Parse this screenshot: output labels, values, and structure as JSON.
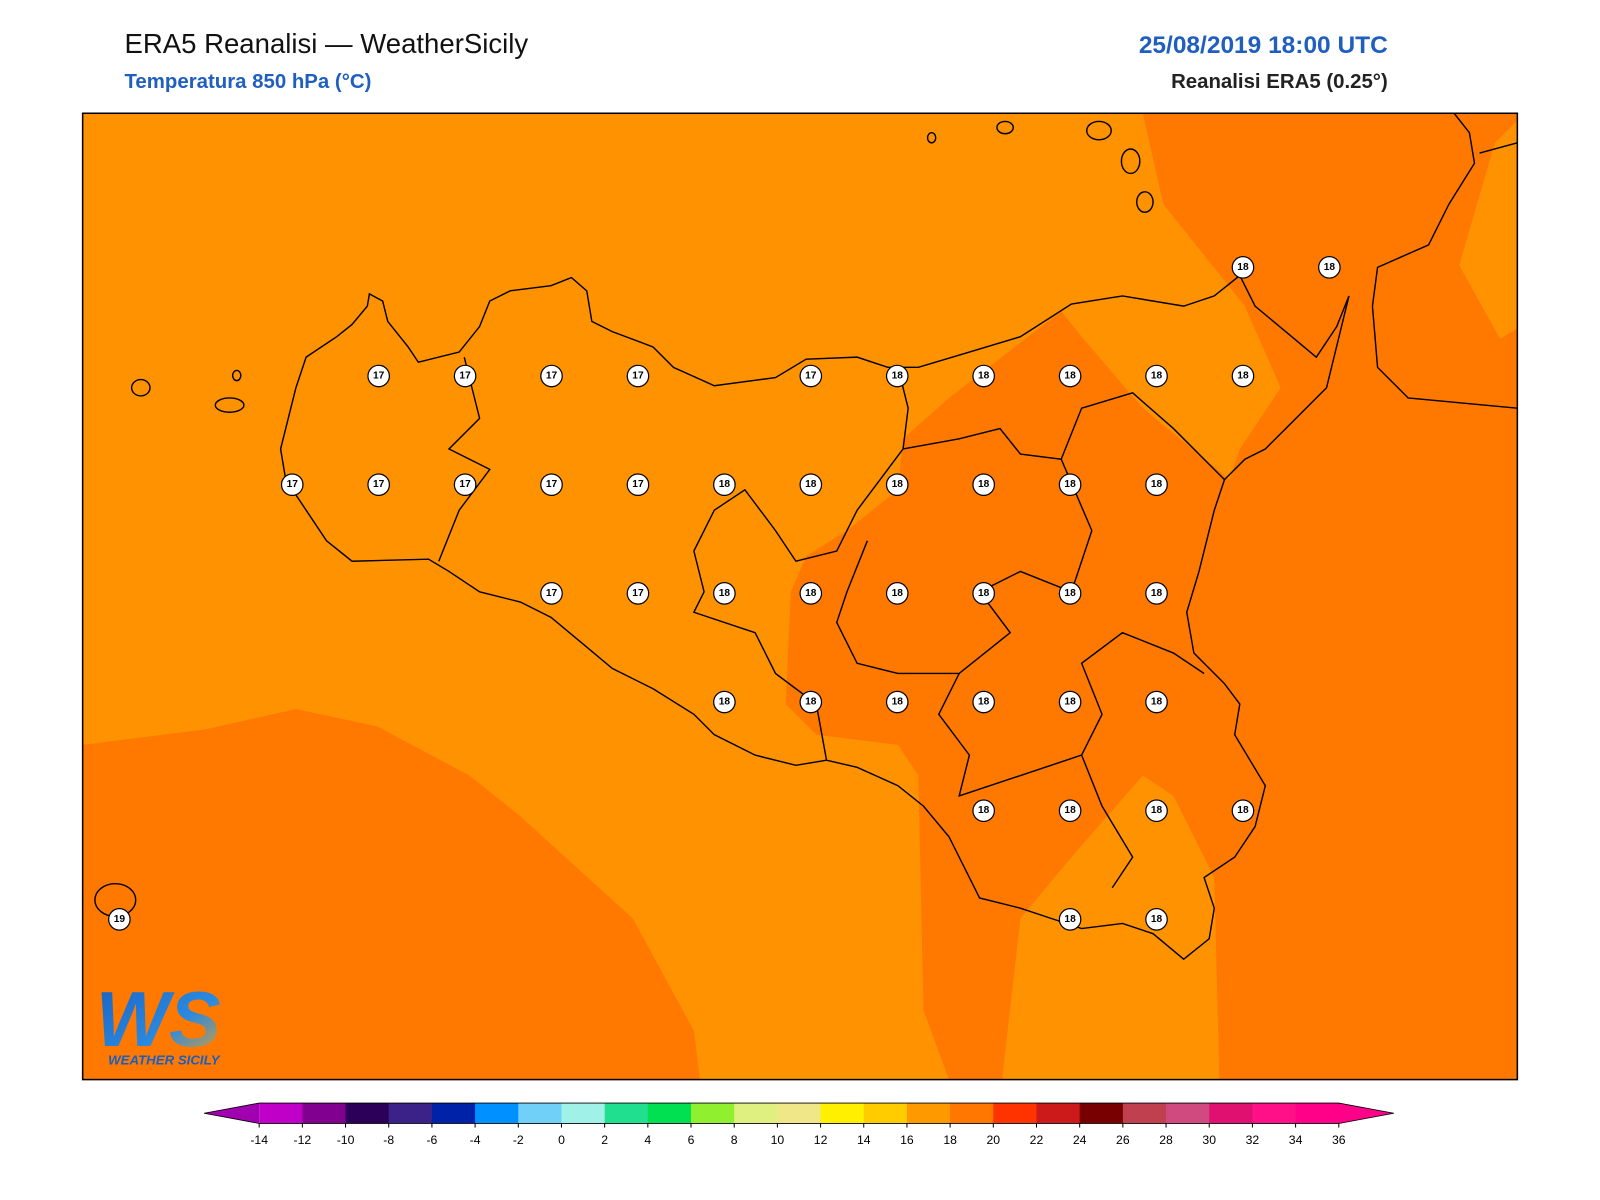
{
  "header": {
    "title": "ERA5 Reanalisi — WeatherSicily",
    "subtitle": "Temperatura 850 hPa (°C)",
    "datetime": "25/08/2019 18:00 UTC",
    "source": "Reanalisi ERA5 (0.25°)"
  },
  "stations": {
    "rows": [
      [
        null,
        null,
        null,
        null,
        null,
        null,
        null,
        null,
        null,
        null,
        null,
        null,
        null,
        18,
        18
      ],
      [
        null,
        null,
        null,
        17,
        17,
        17,
        17,
        null,
        17,
        18,
        18,
        18,
        18,
        18,
        null
      ],
      [
        null,
        null,
        17,
        17,
        17,
        17,
        17,
        18,
        18,
        18,
        18,
        18,
        18,
        null,
        null
      ],
      [
        null,
        null,
        null,
        null,
        null,
        17,
        17,
        18,
        18,
        18,
        18,
        18,
        18,
        null,
        null
      ],
      [
        null,
        null,
        null,
        null,
        null,
        null,
        null,
        18,
        18,
        18,
        18,
        18,
        18,
        null,
        null
      ],
      [
        null,
        null,
        null,
        null,
        null,
        null,
        null,
        null,
        null,
        null,
        18,
        18,
        18,
        18,
        null
      ],
      [
        19,
        null,
        null,
        null,
        null,
        null,
        null,
        null,
        null,
        null,
        null,
        18,
        18,
        null,
        null
      ]
    ]
  },
  "colorbar": {
    "ticks": [
      -14,
      -12,
      -10,
      -8,
      -6,
      -4,
      -2,
      0,
      2,
      4,
      6,
      8,
      10,
      12,
      14,
      16,
      18,
      20,
      22,
      24,
      26,
      28,
      30,
      32,
      34,
      36
    ],
    "colors": [
      "#c000c8",
      "#820090",
      "#2c0058",
      "#3a2288",
      "#0022a8",
      "#0090ff",
      "#70d0f8",
      "#a0f2e8",
      "#20e090",
      "#00e050",
      "#90f030",
      "#e0f080",
      "#f0e888",
      "#fff000",
      "#ffcc00",
      "#ff9900",
      "#ff7700",
      "#ff3300",
      "#cc1a1a",
      "#780000",
      "#c0404f",
      "#d04a80",
      "#e01070",
      "#ff1088",
      "#ff0088"
    ],
    "extend_colors": [
      "#a000b0",
      "#ff0088"
    ]
  },
  "logo": {
    "mark": "WS",
    "name": "WEATHER SICILY"
  }
}
